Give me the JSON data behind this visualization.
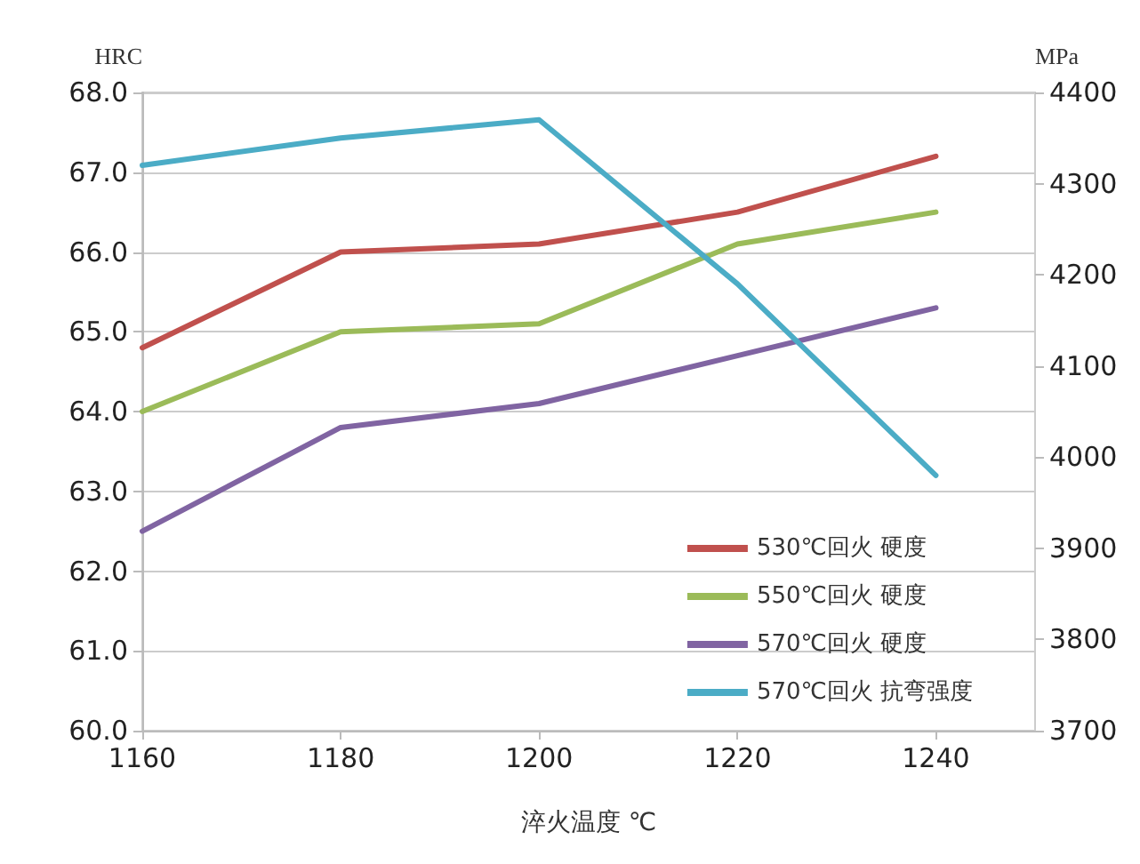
{
  "chart_data": {
    "type": "line",
    "xlabel": "淬火温度 ℃",
    "ylabel": "HRC",
    "y2label": "MPa",
    "x": [
      1160,
      1180,
      1200,
      1220,
      1240
    ],
    "xlim": [
      1160,
      1250
    ],
    "xticks": [
      1160,
      1180,
      1200,
      1220,
      1240
    ],
    "ylim": [
      60,
      68
    ],
    "yticks": [
      {
        "value": 60,
        "label": "60.0"
      },
      {
        "value": 61,
        "label": "61.0"
      },
      {
        "value": 62,
        "label": "62.0"
      },
      {
        "value": 63,
        "label": "63.0"
      },
      {
        "value": 64,
        "label": "64.0"
      },
      {
        "value": 65,
        "label": "65.0"
      },
      {
        "value": 66,
        "label": "66.0"
      },
      {
        "value": 67,
        "label": "67.0"
      },
      {
        "value": 68,
        "label": "68.0"
      }
    ],
    "y2lim": [
      3700,
      4400
    ],
    "y2ticks": [
      3700,
      3800,
      3900,
      4000,
      4100,
      4200,
      4300,
      4400
    ],
    "grid": "y",
    "legend": "bottom right",
    "marker": "none",
    "line_style": "solid",
    "series": [
      {
        "name": "530℃回火 硬度",
        "color": "#c0504d",
        "values": [
          64.8,
          66.0,
          66.1,
          66.5,
          67.2
        ]
      },
      {
        "name": "550℃回火 硬度",
        "color": "#9bbb59",
        "values": [
          64.0,
          65.0,
          65.1,
          66.1,
          66.5
        ]
      },
      {
        "name": "570℃回火 硬度",
        "color": "#8064a2",
        "values": [
          62.5,
          63.8,
          64.1,
          64.7,
          65.3
        ]
      },
      {
        "name": "570℃回火 抗弯强度",
        "color": "#4bacc6",
        "axis": "y2",
        "values": [
          4320,
          4350,
          4370,
          4190,
          3980
        ]
      }
    ]
  }
}
